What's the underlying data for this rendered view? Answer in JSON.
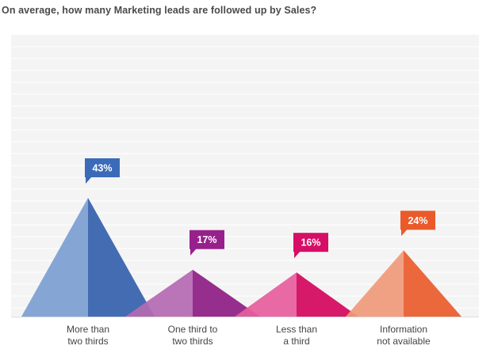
{
  "question": "On average, how many Marketing leads are followed up by Sales?",
  "chart_data": {
    "type": "area",
    "ylim": [
      0,
      50
    ],
    "grid": true,
    "categories": [
      [
        "More than",
        "two thirds"
      ],
      [
        "One third to",
        "two thirds"
      ],
      [
        "Less than",
        "a third"
      ],
      [
        "Information",
        "not available"
      ]
    ],
    "values": [
      43,
      17,
      16,
      24
    ],
    "value_labels": [
      "43%",
      "17%",
      "16%",
      "24%"
    ],
    "colors": [
      {
        "light": "#7c9fd2",
        "dark": "#3561ad",
        "label": "#3b6ab9"
      },
      {
        "light": "#b569b3",
        "dark": "#8e1e84",
        "label": "#97208c"
      },
      {
        "light": "#e65e9c",
        "dark": "#d4075f",
        "label": "#d60e66"
      },
      {
        "light": "#f09a7a",
        "dark": "#e95c2d",
        "label": "#ea5a2a"
      }
    ]
  }
}
